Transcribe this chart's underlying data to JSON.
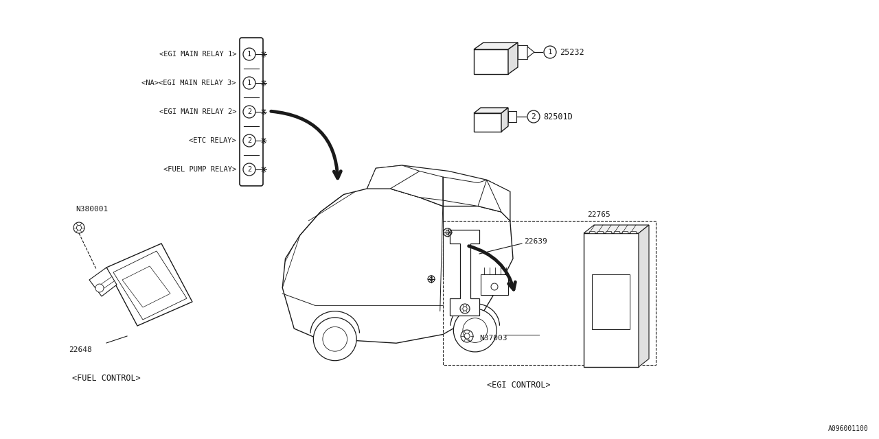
{
  "bg_color": "#ffffff",
  "line_color": "#1a1a1a",
  "font_family": "monospace",
  "title_bottom": "A096001100",
  "fig_w": 12.8,
  "fig_h": 6.4,
  "dpi": 100,
  "relay_labels": [
    {
      "text": "<EGI MAIN RELAY 1>",
      "num": "1",
      "row": 0
    },
    {
      "text": "<NA><EGI MAIN RELAY 3>",
      "num": "1",
      "row": 1
    },
    {
      "text": "<EGI MAIN RELAY 2>",
      "num": "2",
      "row": 2
    },
    {
      "text": "<ETC RELAY>",
      "num": "2",
      "row": 3
    },
    {
      "text": "<FUEL PUMP RELAY>",
      "num": "2",
      "row": 4
    }
  ],
  "part1_label": "25232",
  "part2_label": "82501D",
  "fuel_control_label": "<FUEL CONTROL>",
  "part_22648": "22648",
  "part_N380001": "N380001",
  "egi_control_label": "<EGI CONTROL>",
  "part_22639": "22639",
  "part_22765": "22765",
  "part_N37003": "N37003"
}
